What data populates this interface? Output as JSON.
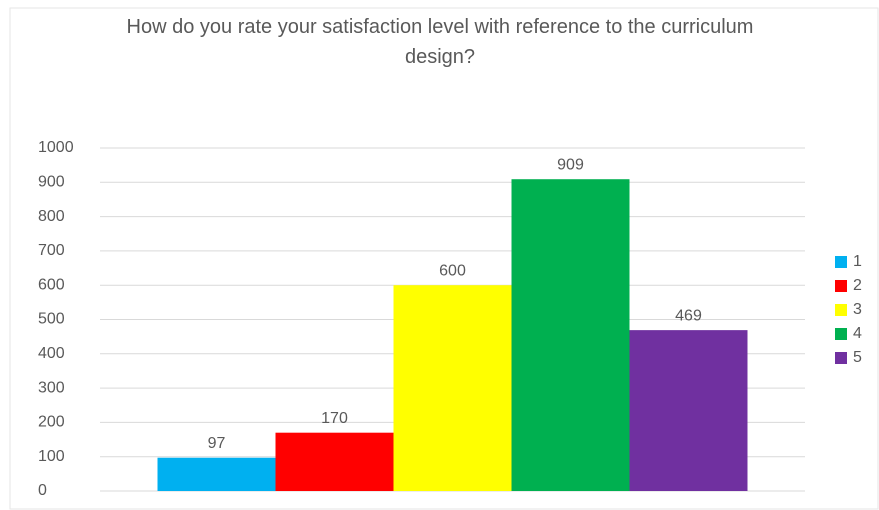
{
  "chart_data": {
    "type": "bar",
    "title": "How do you rate your satisfaction level with reference to the curriculum design?",
    "categories": [
      null
    ],
    "series": [
      {
        "name": "1",
        "color": "#00b0f0",
        "values": [
          97
        ]
      },
      {
        "name": "2",
        "color": "#ff0000",
        "values": [
          170
        ]
      },
      {
        "name": "3",
        "color": "#ffff00",
        "values": [
          600
        ]
      },
      {
        "name": "4",
        "color": "#00b050",
        "values": [
          909
        ]
      },
      {
        "name": "5",
        "color": "#7030a0",
        "values": [
          469
        ]
      }
    ],
    "ylim": [
      0,
      1000
    ],
    "yticks": [
      0,
      100,
      200,
      300,
      400,
      500,
      600,
      700,
      800,
      900,
      1000
    ],
    "grid": true,
    "legend": "right"
  }
}
